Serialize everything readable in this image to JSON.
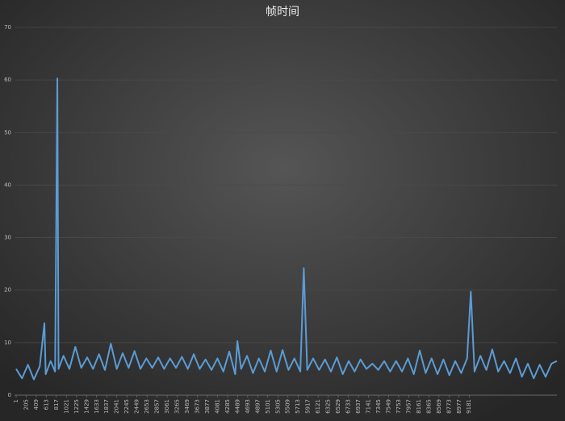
{
  "chart_data": {
    "type": "line",
    "title": "帧时间",
    "xlim": [
      1,
      10960
    ],
    "xticks": [
      1,
      205,
      409,
      613,
      817,
      1021,
      1225,
      1429,
      1633,
      1837,
      2041,
      2245,
      2449,
      2653,
      2857,
      3061,
      3265,
      3469,
      3673,
      3877,
      4081,
      4285,
      4489,
      4693,
      4897,
      5101,
      5305,
      5509,
      5713,
      5917,
      6121,
      6325,
      6529,
      6733,
      6937,
      7141,
      7345,
      7549,
      7753,
      7957,
      8161,
      8365,
      8569,
      8773,
      8977,
      9181
    ],
    "ylim": [
      0,
      70
    ],
    "yticks": [
      0,
      10,
      20,
      30,
      40,
      50,
      60,
      70
    ],
    "grid": true,
    "series": [
      {
        "color": "#5b9bd5",
        "x": [
          1,
          120,
          240,
          360,
          480,
          574,
          600,
          700,
          790,
          836,
          860,
          960,
          1080,
          1200,
          1320,
          1440,
          1560,
          1680,
          1800,
          1920,
          2040,
          2160,
          2280,
          2400,
          2520,
          2640,
          2760,
          2880,
          3000,
          3120,
          3240,
          3360,
          3480,
          3600,
          3720,
          3840,
          3960,
          4080,
          4200,
          4320,
          4440,
          4485,
          4560,
          4680,
          4800,
          4920,
          5040,
          5160,
          5280,
          5400,
          5520,
          5640,
          5760,
          5830,
          5900,
          6020,
          6140,
          6260,
          6380,
          6500,
          6620,
          6740,
          6860,
          6980,
          7100,
          7220,
          7340,
          7460,
          7580,
          7700,
          7820,
          7940,
          8060,
          8180,
          8300,
          8420,
          8540,
          8660,
          8780,
          8900,
          9020,
          9140,
          9215,
          9290,
          9410,
          9530,
          9650,
          9770,
          9890,
          10010,
          10130,
          10250,
          10370,
          10490,
          10610,
          10730,
          10850,
          10960
        ],
        "values": [
          5.0,
          3.2,
          5.8,
          3.0,
          5.5,
          13.7,
          4.0,
          6.5,
          4.5,
          60.3,
          5.0,
          7.5,
          5.0,
          9.2,
          5.2,
          7.2,
          5.0,
          7.8,
          4.8,
          9.8,
          5.0,
          8.0,
          5.2,
          8.4,
          5.0,
          7.0,
          5.2,
          7.2,
          5.0,
          7.0,
          5.2,
          7.3,
          5.0,
          7.8,
          5.0,
          6.8,
          4.8,
          7.0,
          4.5,
          8.3,
          4.0,
          10.3,
          5.0,
          7.5,
          4.2,
          7.0,
          4.5,
          8.5,
          4.5,
          8.6,
          4.8,
          7.0,
          4.5,
          24.2,
          4.8,
          7.0,
          4.8,
          6.8,
          4.5,
          7.2,
          4.0,
          6.5,
          4.5,
          6.8,
          5.0,
          6.0,
          4.8,
          6.5,
          4.5,
          6.5,
          4.5,
          7.0,
          4.0,
          8.5,
          4.2,
          7.0,
          4.0,
          6.8,
          3.8,
          6.5,
          4.2,
          7.0,
          19.7,
          4.5,
          7.5,
          4.8,
          8.7,
          4.5,
          6.5,
          4.2,
          7.0,
          3.5,
          6.0,
          3.2,
          5.8,
          3.5,
          6.0,
          6.5
        ]
      }
    ]
  }
}
